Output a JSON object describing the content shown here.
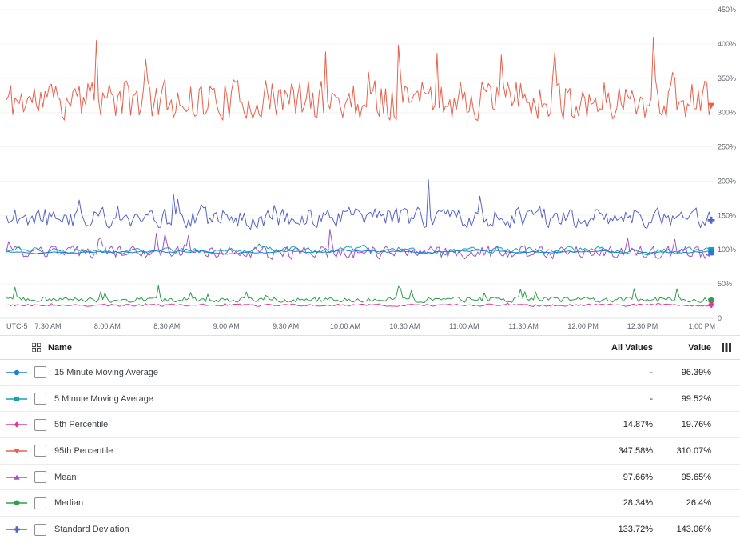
{
  "chart": {
    "y_ticks": [
      "450%",
      "400%",
      "350%",
      "300%",
      "250%",
      "200%",
      "150%",
      "100%",
      "50%",
      "0"
    ],
    "y_tick_values": [
      450,
      400,
      350,
      300,
      250,
      200,
      150,
      100,
      50,
      0
    ],
    "x_ticks": [
      "UTC-5",
      "7:30 AM",
      "8:00 AM",
      "8:30 AM",
      "9:00 AM",
      "9:30 AM",
      "10:00 AM",
      "10:30 AM",
      "11:00 AM",
      "11:30 AM",
      "12:00 PM",
      "12:30 PM",
      "1:00 PM"
    ]
  },
  "chart_data": {
    "type": "line",
    "title": "",
    "y_unit": "%",
    "ylim": [
      0,
      450
    ],
    "x_range": [
      "7:10 AM",
      "1:05 PM"
    ],
    "grid": true,
    "legend_position": "table-below",
    "series": [
      {
        "name": "95th Percentile",
        "color": "#e8614d",
        "marker": "triangle-down",
        "end_value": 310.07,
        "all_values": 347.58,
        "gen": {
          "seed": 11,
          "base": 318,
          "noise": 34,
          "spike_chance": 0.04,
          "spike_amp": 115,
          "smooth": 0.15,
          "min": 288,
          "max": 446
        }
      },
      {
        "name": "Standard Deviation",
        "color": "#5665c0",
        "marker": "plus",
        "end_value": 143.06,
        "all_values": 133.72,
        "gen": {
          "seed": 22,
          "base": 146,
          "noise": 17,
          "spike_chance": 0.05,
          "spike_amp": 70,
          "smooth": 0.2,
          "min": 122,
          "max": 226
        }
      },
      {
        "name": "Mean",
        "color": "#a251c9",
        "marker": "triangle-up",
        "end_value": 95.65,
        "all_values": 97.66,
        "gen": {
          "seed": 33,
          "base": 96,
          "noise": 11,
          "spike_chance": 0.05,
          "spike_amp": 38,
          "smooth": 0.2,
          "min": 80,
          "max": 140
        }
      },
      {
        "name": "5 Minute Moving Average",
        "color": "#17a2ac",
        "marker": "square",
        "end_value": 99.52,
        "all_values": "-",
        "gen": {
          "seed": 44,
          "base": 99,
          "noise": 11,
          "spike_chance": 0.03,
          "spike_amp": 18,
          "smooth": 0.7,
          "min": 85,
          "max": 124
        }
      },
      {
        "name": "15 Minute Moving Average",
        "color": "#1b7fd4",
        "marker": "circle",
        "end_value": 96.39,
        "all_values": "-",
        "gen": {
          "seed": 55,
          "base": 97,
          "noise": 9,
          "spike_chance": 0.02,
          "spike_amp": 12,
          "smooth": 0.88,
          "min": 88,
          "max": 112
        }
      },
      {
        "name": "Median",
        "color": "#2f9e4c",
        "marker": "pentagon",
        "end_value": 26.4,
        "all_values": 28.34,
        "gen": {
          "seed": 66,
          "base": 27,
          "noise": 4.5,
          "spike_chance": 0.05,
          "spike_amp": 28,
          "smooth": 0.2,
          "min": 20,
          "max": 62
        }
      },
      {
        "name": "5th Percentile",
        "color": "#df3a9b",
        "marker": "diamond",
        "end_value": 19.76,
        "all_values": 14.87,
        "gen": {
          "seed": 77,
          "base": 19,
          "noise": 2.2,
          "spike_chance": 0.02,
          "spike_amp": 4,
          "smooth": 0.3,
          "min": 14.5,
          "max": 26
        }
      }
    ]
  },
  "table": {
    "headers": {
      "name": "Name",
      "all_values": "All Values",
      "value": "Value"
    },
    "rows": [
      {
        "name": "15 Minute Moving Average",
        "all_values": "-",
        "value": "96.39%",
        "color": "#1b7fd4",
        "marker": "circle"
      },
      {
        "name": "5 Minute Moving Average",
        "all_values": "-",
        "value": "99.52%",
        "color": "#17a2ac",
        "marker": "square"
      },
      {
        "name": "5th Percentile",
        "all_values": "14.87%",
        "value": "19.76%",
        "color": "#df3a9b",
        "marker": "diamond"
      },
      {
        "name": "95th Percentile",
        "all_values": "347.58%",
        "value": "310.07%",
        "color": "#e8614d",
        "marker": "triangle-down"
      },
      {
        "name": "Mean",
        "all_values": "97.66%",
        "value": "95.65%",
        "color": "#a251c9",
        "marker": "triangle-up"
      },
      {
        "name": "Median",
        "all_values": "28.34%",
        "value": "26.4%",
        "color": "#2f9e4c",
        "marker": "pentagon"
      },
      {
        "name": "Standard Deviation",
        "all_values": "133.72%",
        "value": "143.06%",
        "color": "#5665c0",
        "marker": "plus"
      }
    ]
  }
}
